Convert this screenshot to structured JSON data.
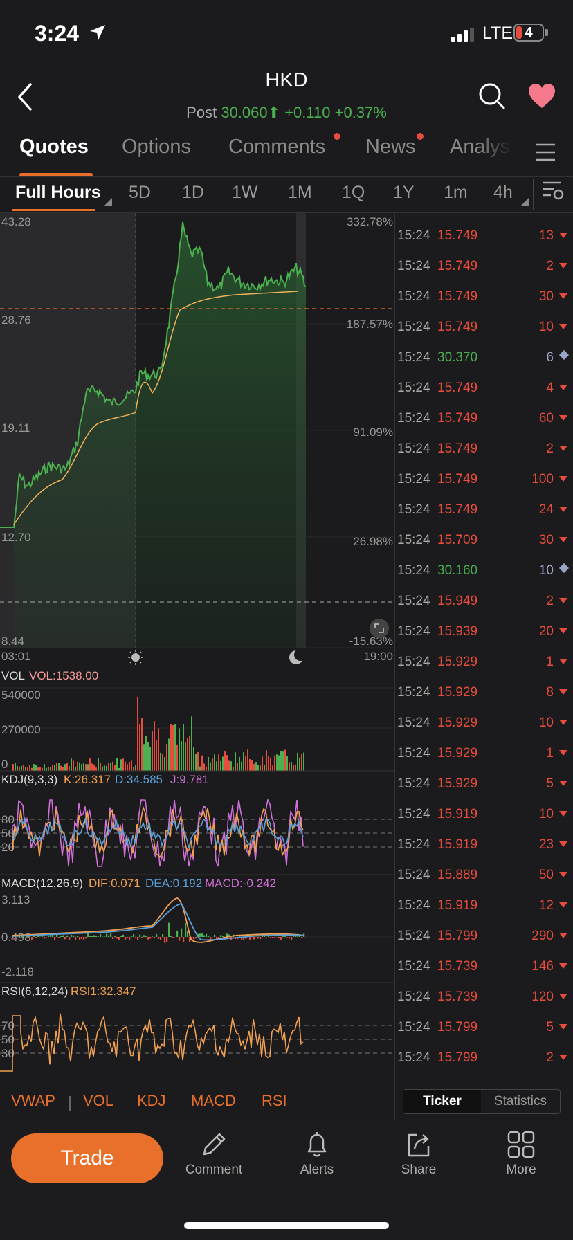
{
  "status_bar": {
    "time": "3:24",
    "network": "LTE",
    "battery": "4"
  },
  "header": {
    "ticker": "HKD",
    "post_label": "Post",
    "price": "30.060",
    "change": "+0.110",
    "change_pct": "+0.37%"
  },
  "tabs": [
    {
      "label": "Quotes",
      "active": true
    },
    {
      "label": "Options"
    },
    {
      "label": "Comments",
      "badge": true
    },
    {
      "label": "News",
      "badge": true
    },
    {
      "label": "Analys"
    }
  ],
  "periods": [
    {
      "label": "Full Hours",
      "active": true
    },
    {
      "label": "5D"
    },
    {
      "label": "1D"
    },
    {
      "label": "1W"
    },
    {
      "label": "1M"
    },
    {
      "label": "1Q"
    },
    {
      "label": "1Y"
    },
    {
      "label": "1m"
    },
    {
      "label": "4h"
    }
  ],
  "price_chart": {
    "y_left": [
      "43.28",
      "28.76",
      "19.11",
      "12.70",
      "8.44"
    ],
    "y_right": [
      "332.78%",
      "187.57%",
      "91.09%",
      "26.98%",
      "-15.63%"
    ],
    "x_start": "03:01",
    "x_end": "19:00"
  },
  "vol": {
    "label": "VOL",
    "value": "VOL:1538.00",
    "ticks": [
      "540000",
      "270000",
      "0"
    ]
  },
  "kdj": {
    "label": "KDJ(9,3,3)",
    "k": "K:26.317",
    "d": "D:34.585",
    "j": "J:9.781",
    "levels": [
      "80",
      "50",
      "20"
    ]
  },
  "macd": {
    "label": "MACD(12,26,9)",
    "dif": "DIF:0.071",
    "dea": "DEA:0.192",
    "macd": "MACD:-0.242",
    "ticks": [
      "3.113",
      "0.498",
      "-2.118"
    ]
  },
  "rsi": {
    "label": "RSI(6,12,24)",
    "rsi1": "RSI1:32.347",
    "levels": [
      "70",
      "50",
      "30"
    ]
  },
  "indicators": [
    "VWAP",
    "VOL",
    "KDJ",
    "MACD",
    "RSI"
  ],
  "ticker_list": [
    {
      "time": "15:24",
      "price": "15.749",
      "qty": "13",
      "dir": "down"
    },
    {
      "time": "15:24",
      "price": "15.749",
      "qty": "2",
      "dir": "down"
    },
    {
      "time": "15:24",
      "price": "15.749",
      "qty": "30",
      "dir": "down"
    },
    {
      "time": "15:24",
      "price": "15.749",
      "qty": "10",
      "dir": "down"
    },
    {
      "time": "15:24",
      "price": "30.370",
      "qty": "6",
      "dir": "neutral"
    },
    {
      "time": "15:24",
      "price": "15.749",
      "qty": "4",
      "dir": "down"
    },
    {
      "time": "15:24",
      "price": "15.749",
      "qty": "60",
      "dir": "down"
    },
    {
      "time": "15:24",
      "price": "15.749",
      "qty": "2",
      "dir": "down"
    },
    {
      "time": "15:24",
      "price": "15.749",
      "qty": "100",
      "dir": "down"
    },
    {
      "time": "15:24",
      "price": "15.749",
      "qty": "24",
      "dir": "down"
    },
    {
      "time": "15:24",
      "price": "15.709",
      "qty": "30",
      "dir": "down"
    },
    {
      "time": "15:24",
      "price": "30.160",
      "qty": "10",
      "dir": "neutral"
    },
    {
      "time": "15:24",
      "price": "15.949",
      "qty": "2",
      "dir": "down"
    },
    {
      "time": "15:24",
      "price": "15.939",
      "qty": "20",
      "dir": "down"
    },
    {
      "time": "15:24",
      "price": "15.929",
      "qty": "1",
      "dir": "down"
    },
    {
      "time": "15:24",
      "price": "15.929",
      "qty": "8",
      "dir": "down"
    },
    {
      "time": "15:24",
      "price": "15.929",
      "qty": "10",
      "dir": "down"
    },
    {
      "time": "15:24",
      "price": "15.929",
      "qty": "1",
      "dir": "down"
    },
    {
      "time": "15:24",
      "price": "15.929",
      "qty": "5",
      "dir": "down"
    },
    {
      "time": "15:24",
      "price": "15.919",
      "qty": "10",
      "dir": "down"
    },
    {
      "time": "15:24",
      "price": "15.919",
      "qty": "23",
      "dir": "down"
    },
    {
      "time": "15:24",
      "price": "15.889",
      "qty": "50",
      "dir": "down"
    },
    {
      "time": "15:24",
      "price": "15.919",
      "qty": "12",
      "dir": "down"
    },
    {
      "time": "15:24",
      "price": "15.799",
      "qty": "290",
      "dir": "down"
    },
    {
      "time": "15:24",
      "price": "15.739",
      "qty": "146",
      "dir": "down"
    },
    {
      "time": "15:24",
      "price": "15.739",
      "qty": "120",
      "dir": "down"
    },
    {
      "time": "15:24",
      "price": "15.799",
      "qty": "5",
      "dir": "down"
    },
    {
      "time": "15:24",
      "price": "15.799",
      "qty": "2",
      "dir": "down"
    }
  ],
  "segment": {
    "ticker": "Ticker",
    "statistics": "Statistics"
  },
  "bottom_nav": {
    "trade": "Trade",
    "items": [
      {
        "label": "Comment",
        "icon": "pencil-icon"
      },
      {
        "label": "Alerts",
        "icon": "bell-icon"
      },
      {
        "label": "Share",
        "icon": "share-icon"
      },
      {
        "label": "More",
        "icon": "grid-icon"
      }
    ]
  },
  "colors": {
    "accent": "#e8702a",
    "up": "#4caf50",
    "down": "#e74c3c",
    "neutral": "#9aa6c7",
    "vwap": "#f0b35c",
    "kdj_k": "#f0a050",
    "kdj_d": "#5aa0d8",
    "kdj_j": "#d070d8"
  }
}
